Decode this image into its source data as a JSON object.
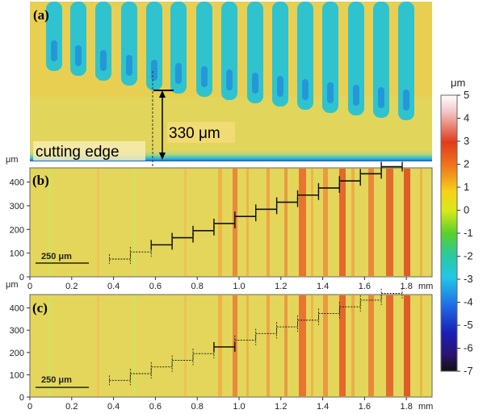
{
  "figure": {
    "panel_a": {
      "label": "(a)",
      "annotation": "330 μm",
      "edge_label": "cutting edge"
    },
    "panel_b": {
      "label": "(b)",
      "y_unit": "μm",
      "y_ticks": [
        "400",
        "300",
        "200",
        "100",
        "0"
      ],
      "scale_bar": "250 μm"
    },
    "panel_c": {
      "label": "(c)",
      "y_unit": "μm",
      "y_ticks": [
        "400",
        "300",
        "200",
        "100",
        "0"
      ],
      "scale_bar": "250 μm"
    },
    "x_ticks_b": [
      "0",
      "0.2",
      "0.4",
      "0.6",
      "0.8",
      "1.0",
      "1.2",
      "1.4",
      "1.6",
      "1.8"
    ],
    "x_unit_b": "mm",
    "x_ticks_c": [
      "0",
      "0.2",
      "0.4",
      "0.6",
      "0.8",
      "1.0",
      "1.2",
      "1.4",
      "1.6",
      "1.8"
    ],
    "x_unit_c": "mm",
    "colorbar": {
      "unit": "μm",
      "ticks": [
        "5",
        "4",
        "3",
        "2",
        "1",
        "0",
        "-1",
        "-2",
        "-3",
        "-4",
        "-5",
        "-6",
        "-7"
      ]
    }
  }
}
